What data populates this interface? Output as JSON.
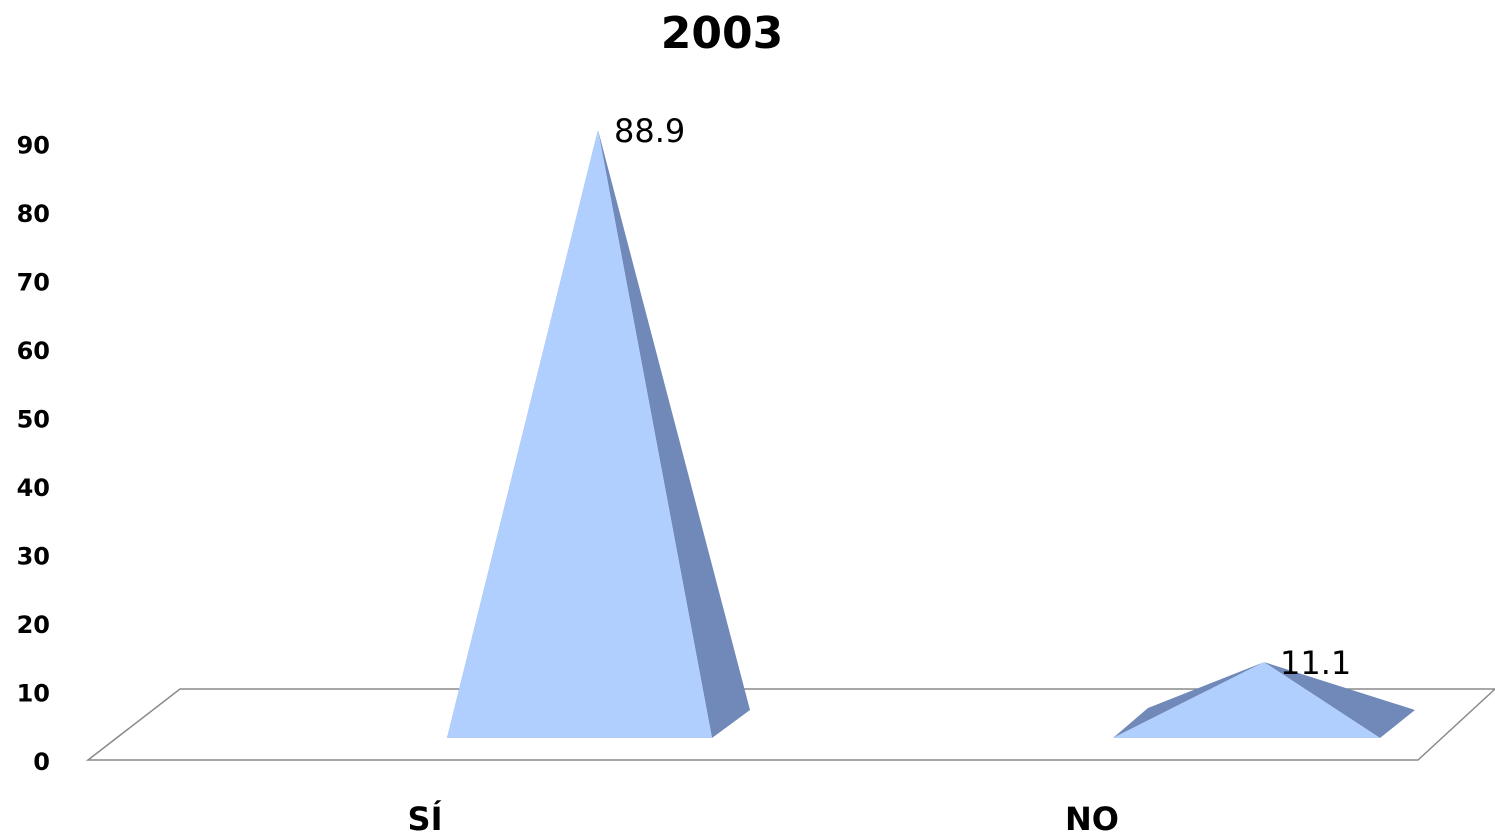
{
  "chart_data": {
    "type": "bar",
    "title": "2003",
    "categories": [
      "SÍ",
      "NO"
    ],
    "values": [
      88.9,
      11.1
    ],
    "data_labels": [
      "88.9",
      "11.1"
    ],
    "ylim": [
      0,
      90
    ],
    "yticks": [
      "0",
      "10",
      "20",
      "30",
      "40",
      "50",
      "60",
      "70",
      "80",
      "90"
    ],
    "grid": false,
    "legend": "none",
    "shape": "3d-pyramid",
    "colors": {
      "face": "#b0cfff",
      "side": "#7089b8",
      "floor_line": "#8a8a8a"
    }
  }
}
